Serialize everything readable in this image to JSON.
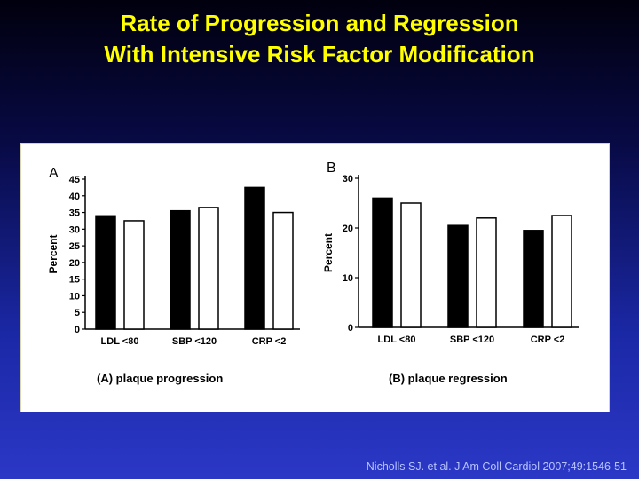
{
  "slide": {
    "title_line1": "Rate of Progression and Regression",
    "title_line2": "With Intensive Risk Factor Modification",
    "citation": "Nicholls SJ. et al. J Am Coll Cardiol 2007;49:1546-51"
  },
  "colors": {
    "title": "#ffff00",
    "bar_filled": "#000000",
    "bar_open": "#ffffff",
    "panel_bg": "#ffffff"
  },
  "chart_data": [
    {
      "type": "bar",
      "panel_label": "A",
      "caption": "(A) plaque progression",
      "ylabel": "Percent",
      "ylim": [
        0,
        45
      ],
      "yticks": [
        0,
        5,
        10,
        15,
        20,
        25,
        30,
        35,
        40,
        45
      ],
      "categories": [
        "LDL <80",
        "SBP <120",
        "CRP <2"
      ],
      "series": [
        {
          "fill": "filled",
          "values": [
            34,
            35.5,
            42.5
          ]
        },
        {
          "fill": "open",
          "values": [
            32.5,
            36.5,
            35
          ]
        }
      ]
    },
    {
      "type": "bar",
      "panel_label": "B",
      "caption": "(B) plaque regression",
      "ylabel": "Percent",
      "ylim": [
        0,
        30
      ],
      "yticks": [
        0,
        10,
        20,
        30
      ],
      "categories": [
        "LDL <80",
        "SBP <120",
        "CRP <2"
      ],
      "series": [
        {
          "fill": "filled",
          "values": [
            26,
            20.5,
            19.5
          ]
        },
        {
          "fill": "open",
          "values": [
            25,
            22,
            22.5
          ]
        }
      ]
    }
  ]
}
